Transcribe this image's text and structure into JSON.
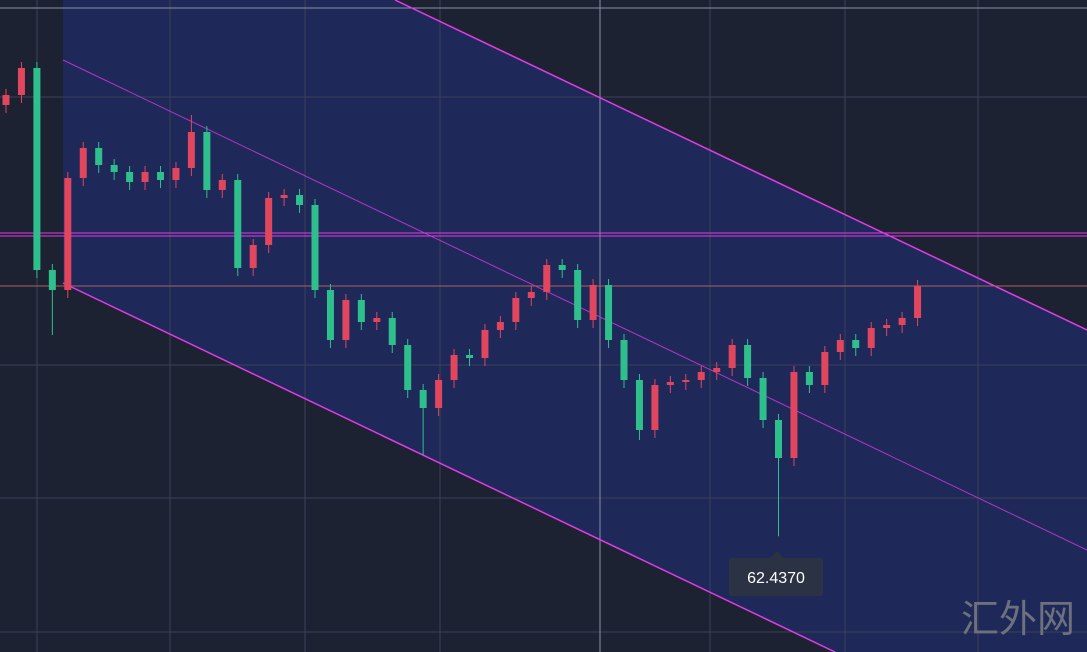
{
  "chart_data": {
    "type": "candlestick",
    "ylim": [
      61.28,
      67.8
    ],
    "up_color": "#e0465e",
    "down_color": "#2fbf8c",
    "open": [
      66.75,
      66.85,
      67.12,
      65.1,
      64.9,
      66.02,
      66.32,
      66.15,
      66.08,
      65.98,
      66.08,
      66.0,
      66.12,
      66.48,
      65.9,
      66.0,
      65.12,
      65.35,
      65.82,
      65.85,
      65.75,
      64.9,
      64.4,
      64.8,
      64.58,
      64.62,
      64.35,
      63.9,
      63.72,
      64.0,
      64.25,
      64.22,
      64.5,
      64.58,
      64.82,
      64.88,
      65.15,
      65.1,
      64.6,
      64.95,
      64.4,
      64.0,
      63.5,
      63.95,
      63.98,
      64.0,
      64.08,
      64.12,
      64.35,
      64.02,
      63.6,
      63.22,
      64.08,
      63.95,
      64.28,
      64.4,
      64.32,
      64.52,
      64.55,
      64.62
    ],
    "high": [
      66.91,
      67.18,
      67.18,
      65.16,
      66.08,
      66.38,
      66.38,
      66.21,
      66.14,
      66.14,
      66.14,
      66.18,
      66.65,
      66.54,
      66.06,
      66.06,
      65.41,
      65.88,
      65.91,
      65.91,
      65.81,
      64.96,
      64.86,
      64.86,
      64.68,
      64.68,
      64.41,
      63.96,
      64.06,
      64.31,
      64.31,
      64.56,
      64.64,
      64.88,
      64.94,
      65.21,
      65.21,
      65.16,
      65.01,
      65.01,
      64.46,
      64.06,
      64.01,
      64.04,
      64.06,
      64.14,
      64.18,
      64.41,
      64.41,
      64.08,
      63.66,
      64.14,
      64.14,
      64.34,
      64.46,
      64.46,
      64.58,
      64.61,
      64.68,
      65.0
    ],
    "low": [
      66.67,
      66.77,
      65.02,
      64.45,
      64.82,
      65.94,
      66.07,
      66.0,
      65.9,
      65.9,
      65.92,
      65.92,
      66.04,
      65.82,
      65.82,
      65.04,
      65.04,
      65.27,
      65.74,
      65.67,
      64.82,
      64.32,
      64.32,
      64.5,
      64.5,
      64.27,
      63.82,
      63.25,
      63.64,
      63.92,
      64.14,
      64.14,
      64.42,
      64.5,
      64.74,
      64.8,
      65.02,
      64.52,
      64.52,
      64.32,
      63.92,
      63.4,
      63.42,
      63.87,
      63.9,
      63.92,
      64.0,
      64.04,
      63.94,
      63.52,
      62.437,
      63.14,
      63.87,
      63.87,
      64.2,
      64.24,
      64.24,
      64.44,
      64.47,
      64.54
    ],
    "close": [
      66.85,
      67.12,
      65.1,
      64.9,
      66.02,
      66.32,
      66.15,
      66.08,
      65.98,
      66.08,
      66.0,
      66.12,
      66.48,
      65.9,
      66.0,
      65.12,
      65.35,
      65.82,
      65.85,
      65.75,
      64.9,
      64.4,
      64.8,
      64.58,
      64.62,
      64.35,
      63.9,
      63.72,
      64.0,
      64.25,
      64.22,
      64.5,
      64.58,
      64.82,
      64.88,
      65.15,
      65.1,
      64.6,
      64.95,
      64.4,
      64.0,
      63.5,
      63.95,
      63.98,
      64.0,
      64.08,
      64.12,
      64.35,
      64.02,
      63.6,
      63.22,
      64.08,
      63.95,
      64.28,
      64.4,
      64.32,
      64.52,
      64.55,
      64.62,
      64.94
    ],
    "annotation": {
      "value": 62.437,
      "label": "62.4370"
    },
    "watermark": "汇外网"
  }
}
